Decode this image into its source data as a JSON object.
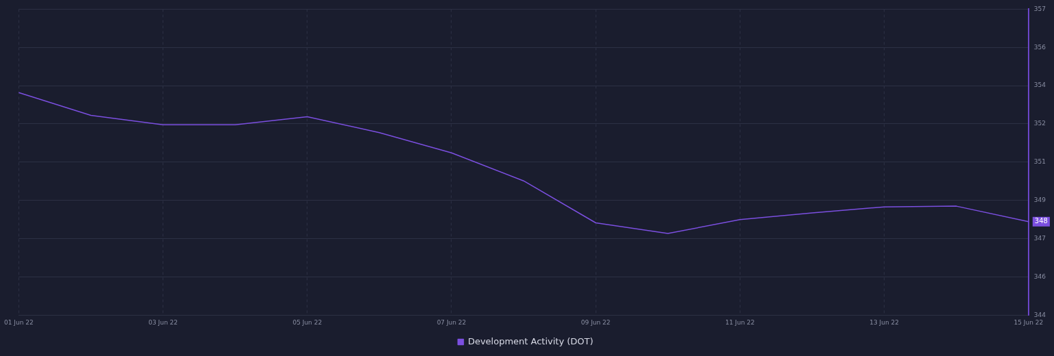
{
  "chart_data": {
    "type": "line",
    "categories": [
      "01 Jun 22",
      null,
      "03 Jun 22",
      null,
      "05 Jun 22",
      null,
      "07 Jun 22",
      null,
      "09 Jun 22",
      null,
      "11 Jun 22",
      null,
      "13 Jun 22",
      null,
      "15 Jun 22"
    ],
    "series": [
      {
        "name": "Development Activity (DOT)",
        "color": "#7b4fe0",
        "values": [
          353.6,
          352.62,
          352.21,
          352.21,
          352.56,
          351.87,
          351.0,
          349.79,
          347.98,
          347.52,
          348.12,
          348.41,
          348.67,
          348.7,
          348.03
        ],
        "value_labels": [
          null,
          null,
          null,
          null,
          null,
          null,
          null,
          null,
          null,
          null,
          null,
          null,
          null,
          null,
          "348"
        ]
      }
    ],
    "ylim": [
      344,
      357.2
    ],
    "yticks": [
      {
        "value": 344,
        "label": "344"
      },
      {
        "value": 345.65,
        "label": "346"
      },
      {
        "value": 347.3,
        "label": "347"
      },
      {
        "value": 348.95,
        "label": "349"
      },
      {
        "value": 350.6,
        "label": "351"
      },
      {
        "value": 352.25,
        "label": "352"
      },
      {
        "value": 353.9,
        "label": "354"
      },
      {
        "value": 355.55,
        "label": "356"
      },
      {
        "value": 357.2,
        "label": "357"
      }
    ],
    "grid": true,
    "legend": "bottom",
    "marker": "none",
    "line_style": "solid"
  }
}
